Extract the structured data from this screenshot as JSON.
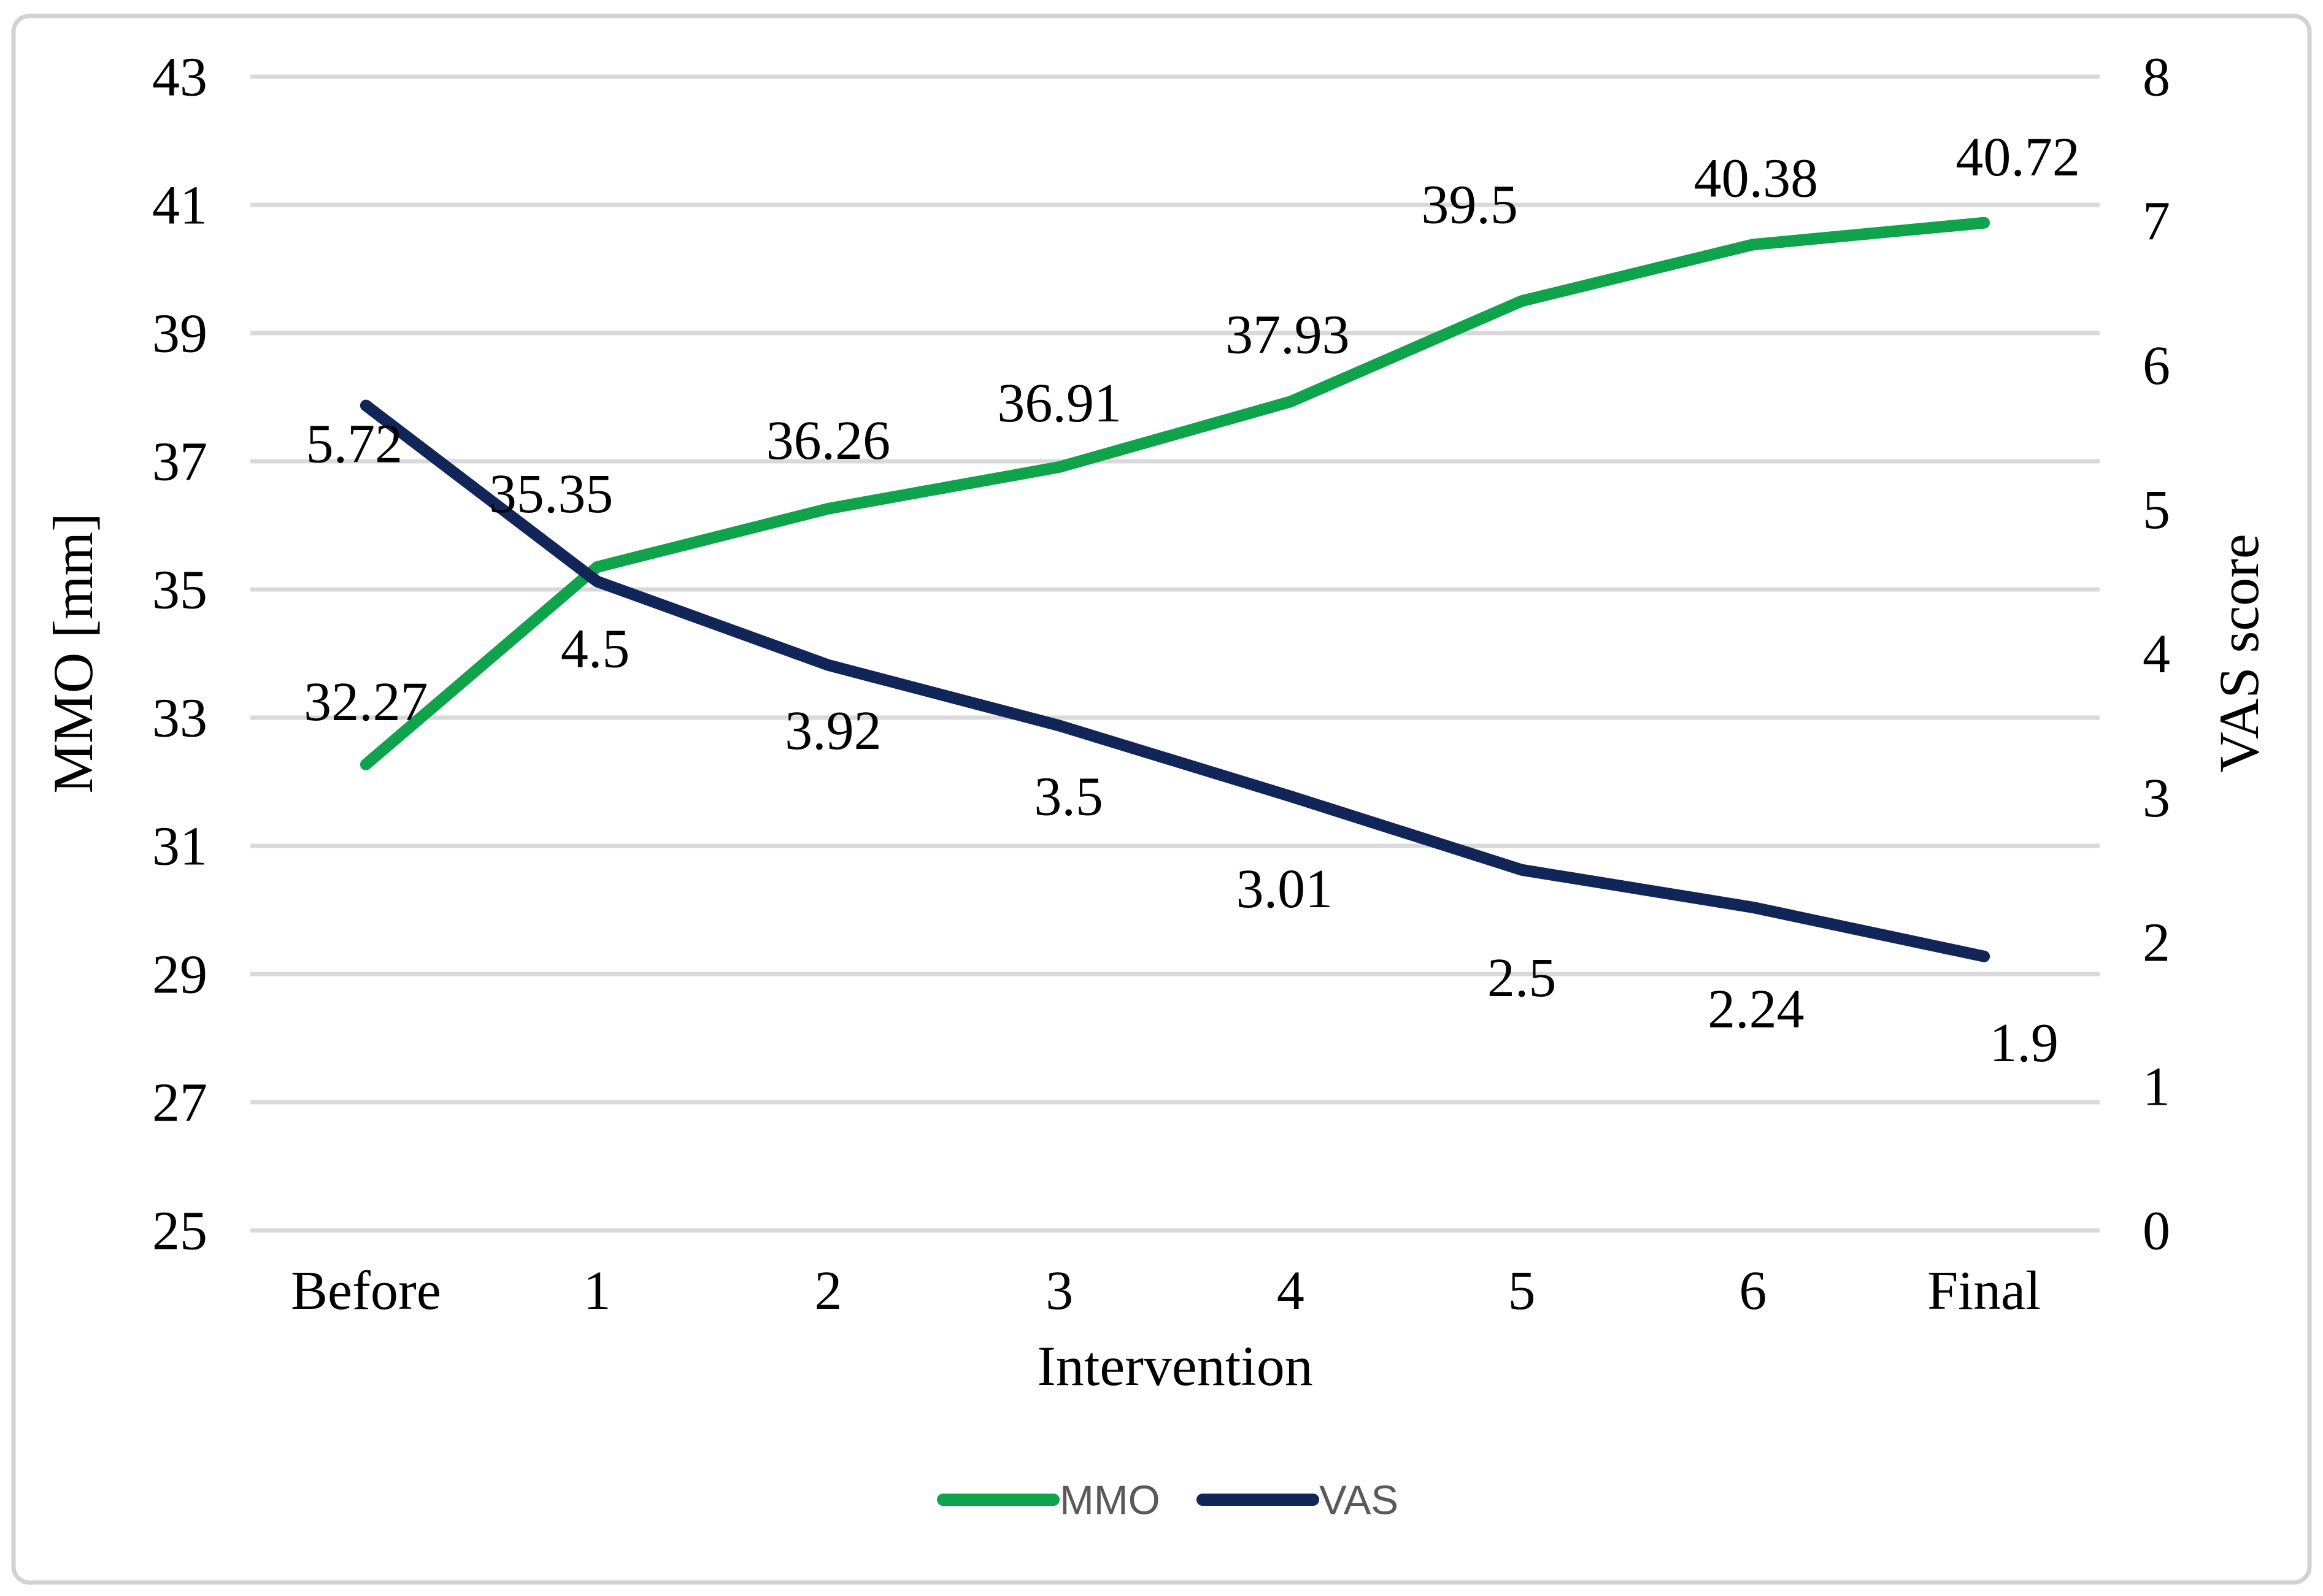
{
  "figure": {
    "background": "#FFFFFF",
    "border_color": "#D2D2D2",
    "gridline_color": "#D9D9D9"
  },
  "legend": {
    "items": [
      {
        "label": "MMO",
        "color": "#0FA44B"
      },
      {
        "label": "VAS",
        "color": "#112558"
      }
    ],
    "text_color": "#595959"
  },
  "chart_data": {
    "type": "line",
    "categories": [
      "Before",
      "1",
      "2",
      "3",
      "4",
      "5",
      "6",
      "Final"
    ],
    "xlabel": "Intervention",
    "left_axis": {
      "label": "MMO [mm]",
      "range": [
        25,
        43
      ],
      "tick_step": 2,
      "ticks": [
        "43",
        "41",
        "39",
        "37",
        "35",
        "33",
        "31",
        "29",
        "27",
        "25"
      ]
    },
    "right_axis": {
      "label": "VAS score",
      "range": [
        0,
        8
      ],
      "tick_step": 1,
      "ticks": [
        "8",
        "7",
        "6",
        "5",
        "4",
        "3",
        "2",
        "1",
        "0"
      ]
    },
    "grid": true,
    "legend_position": "bottom",
    "series": [
      {
        "name": "MMO",
        "axis": "left",
        "color": "#0FA44B",
        "values": [
          32.27,
          35.35,
          36.26,
          36.91,
          37.93,
          39.5,
          40.38,
          40.72
        ],
        "labels": [
          "32.27",
          "35.35",
          "36.26",
          "36.91",
          "37.93",
          "39.5",
          "40.38",
          "40.72"
        ]
      },
      {
        "name": "VAS",
        "axis": "right",
        "color": "#112558",
        "values": [
          5.72,
          4.5,
          3.92,
          3.5,
          3.01,
          2.5,
          2.24,
          1.9
        ],
        "labels": [
          "5.72",
          "4.5",
          "3.92",
          "3.5",
          "3.01",
          "2.5",
          "2.24",
          "1.9"
        ]
      }
    ]
  }
}
